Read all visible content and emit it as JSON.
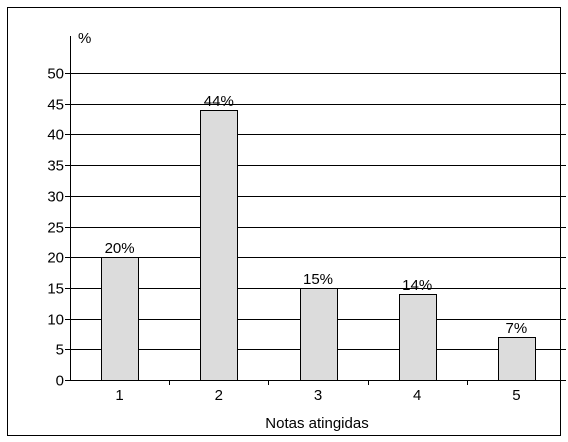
{
  "chart_data": {
    "type": "bar",
    "categories": [
      "1",
      "2",
      "3",
      "4",
      "5"
    ],
    "values": [
      20,
      44,
      15,
      14,
      7
    ],
    "data_labels": [
      "20%",
      "44%",
      "15%",
      "14%",
      "7%"
    ],
    "title": "",
    "xlabel": "Notas atingidas",
    "ylabel": "%",
    "ylim": [
      0,
      50
    ],
    "yticks": [
      "0",
      "5",
      "10",
      "15",
      "20",
      "25",
      "30",
      "35",
      "40",
      "45",
      "50"
    ],
    "grid": true,
    "bar_color": "#dcdcdc",
    "grid_color": "#000000"
  }
}
